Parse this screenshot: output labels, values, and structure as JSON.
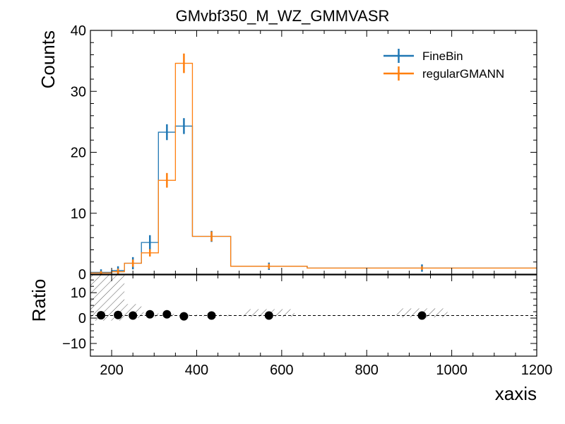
{
  "colors": {
    "finebin": "#1f77b4",
    "regular": "#ff7f0e",
    "ratio_points": "#000000",
    "hatch": "#555555",
    "axes": "#000000"
  },
  "chart_data": [
    {
      "type": "line",
      "panel": "main",
      "title": "GMvbf350_M_WZ_GMMVASR",
      "ylabel": "Counts",
      "xlim": [
        150,
        1200
      ],
      "ylim": [
        0,
        40
      ],
      "yticks": [
        0,
        10,
        20,
        30,
        40
      ],
      "legend_position": "top-right",
      "bin_edges": [
        150,
        200,
        230,
        270,
        310,
        350,
        390,
        480,
        660,
        1200
      ],
      "series": [
        {
          "name": "FineBin",
          "color_key": "finebin",
          "values": [
            0.3,
            0.6,
            1.8,
            5.2,
            23.3,
            24.3,
            6.2,
            1.3,
            1.0
          ],
          "marker_x": [
            175,
            215,
            250,
            290,
            330,
            370,
            435,
            570,
            930
          ],
          "errors": [
            0.5,
            0.7,
            1.0,
            1.2,
            1.3,
            1.3,
            0.9,
            0.6,
            0.6
          ]
        },
        {
          "name": "regularGMANN",
          "color_key": "regular",
          "values": [
            0.2,
            0.4,
            1.8,
            3.5,
            15.4,
            34.6,
            6.2,
            1.3,
            1.0
          ],
          "marker_x": [
            175,
            215,
            250,
            290,
            330,
            370,
            435,
            570,
            930
          ],
          "errors": [
            0.3,
            0.5,
            0.6,
            0.6,
            1.2,
            1.6,
            0.8,
            0.4,
            0.3
          ]
        }
      ]
    },
    {
      "type": "scatter",
      "panel": "ratio",
      "ylabel": "Ratio",
      "xlabel": "xaxis",
      "xlim": [
        150,
        1200
      ],
      "ylim": [
        -15,
        17
      ],
      "yticks": [
        -10,
        0,
        10
      ],
      "xticks": [
        200,
        400,
        600,
        800,
        1000,
        1200
      ],
      "reference_line": 1,
      "points": {
        "x": [
          175,
          215,
          250,
          290,
          330,
          370,
          435,
          570,
          930
        ],
        "y": [
          1.1,
          1.2,
          1.0,
          1.5,
          1.5,
          0.7,
          1.0,
          1.0,
          1.0
        ]
      },
      "uncertainty_band": {
        "x_ranges": [
          [
            150,
            230
          ],
          [
            230,
            270
          ],
          [
            270,
            310
          ],
          [
            310,
            350
          ],
          [
            350,
            390
          ],
          [
            390,
            480
          ],
          [
            510,
            630
          ],
          [
            870,
            990
          ]
        ],
        "low": [
          -1.0,
          0.0,
          0.4,
          0.6,
          0.7,
          0.7,
          0.5,
          0.3
        ],
        "high": [
          17.0,
          5.5,
          2.3,
          1.6,
          1.4,
          1.3,
          3.5,
          3.8
        ]
      }
    }
  ]
}
